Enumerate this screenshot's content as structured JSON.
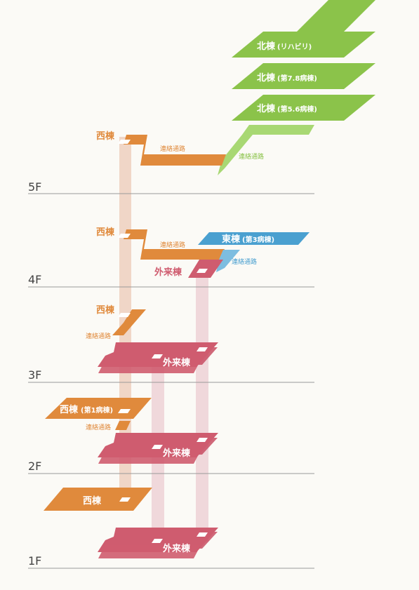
{
  "floors": {
    "f5": "5F",
    "f4": "4F",
    "f3": "3F",
    "f2": "2F",
    "f1": "1F"
  },
  "buildings": {
    "north_rehab": "北棟",
    "north_rehab_sub": "(リハビリ)",
    "north_78": "北棟",
    "north_78_sub": "(第7.8病棟)",
    "north_56": "北棟",
    "north_56_sub": "(第5.6病棟)",
    "east": "東棟",
    "east_sub": "(第3病棟)",
    "west_5f": "西棟",
    "west_4f": "西棟",
    "west_3f": "西棟",
    "west_2f": "西棟",
    "west_2f_sub": "(第1病棟)",
    "west_1f": "西棟",
    "outpatient_4f": "外来棟",
    "outpatient_3f": "外来棟",
    "outpatient_2f": "外来棟",
    "outpatient_1f": "外来棟"
  },
  "connectors": {
    "c5_orange": "連絡通路",
    "c5_green": "連絡通路",
    "c4_orange": "連絡通路",
    "c4_blue": "連絡通路",
    "c3_orange": "連絡通路",
    "c2_orange": "連絡通路"
  },
  "colors": {
    "north": "#8bc34a",
    "west": "#e08a3c",
    "outpatient": "#cf5c6f",
    "east": "#4aa0d0",
    "floor_line": "#9a9a9a",
    "floor_label": "#444444",
    "background": "#fbfaf6"
  }
}
